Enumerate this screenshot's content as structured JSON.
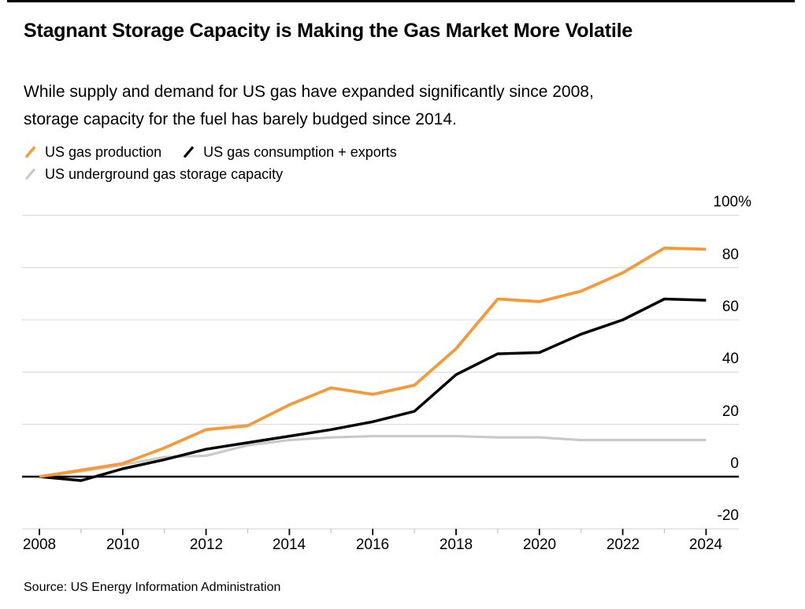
{
  "header": {
    "title": "Stagnant Storage Capacity is Making the Gas Market More Volatile",
    "subtitle": "While supply and demand for US gas have expanded significantly since 2008, storage capacity for the fuel has barely budged since 2014."
  },
  "legend": {
    "items": [
      {
        "label": "US gas production",
        "color": "#F79939"
      },
      {
        "label": "US gas consumption + exports",
        "color": "#000000"
      },
      {
        "label": "US underground gas storage capacity",
        "color": "#C9C9C9"
      }
    ]
  },
  "chart_data": {
    "type": "line",
    "title": "Stagnant Storage Capacity is Making the Gas Market More Volatile",
    "subtitle": "While supply and demand for US gas have expanded significantly since 2008, storage capacity for the fuel has barely budged since 2014.",
    "x": [
      2008,
      2009,
      2010,
      2011,
      2012,
      2013,
      2014,
      2015,
      2016,
      2017,
      2018,
      2019,
      2020,
      2021,
      2022,
      2023,
      2024
    ],
    "series": [
      {
        "name": "US gas production",
        "color": "#F79939",
        "values": [
          0,
          2.5,
          5,
          11,
          18,
          19.5,
          27.5,
          34,
          31.5,
          35,
          49,
          68,
          67,
          71,
          78,
          87.5,
          87
        ]
      },
      {
        "name": "US gas consumption + exports",
        "color": "#000000",
        "values": [
          0,
          -1.5,
          3,
          6.5,
          10.5,
          13,
          15.5,
          18,
          21,
          25,
          39,
          47,
          47.5,
          54.5,
          60,
          68,
          67.5
        ]
      },
      {
        "name": "US underground gas storage capacity",
        "color": "#C9C9C9",
        "values": [
          0,
          2,
          4.5,
          7.5,
          8,
          12,
          14,
          15,
          15.5,
          15.5,
          15.5,
          15,
          15,
          14,
          14,
          14,
          14
        ]
      }
    ],
    "y_ticks": [
      {
        "value": 100,
        "label": "100%"
      },
      {
        "value": 80,
        "label": "80"
      },
      {
        "value": 60,
        "label": "60"
      },
      {
        "value": 40,
        "label": "40"
      },
      {
        "value": 20,
        "label": "20"
      },
      {
        "value": 0,
        "label": "0"
      },
      {
        "value": -20,
        "label": "-20"
      }
    ],
    "x_tick_labels": [
      "2008",
      "2010",
      "2012",
      "2014",
      "2016",
      "2018",
      "2020",
      "2022",
      "2024"
    ],
    "ylim": [
      -20,
      100
    ],
    "xlim": [
      2008,
      2024
    ],
    "grid": "horizontal",
    "legend_position": "top"
  },
  "source": {
    "text": "Source: US Energy Information Administration"
  }
}
